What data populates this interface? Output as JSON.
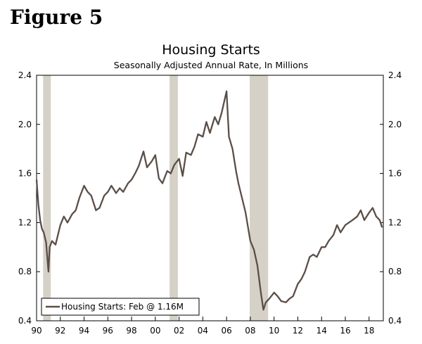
{
  "figure_label": "Figure 5",
  "chart_data": {
    "type": "line",
    "title": "Housing Starts",
    "subtitle": "Seasonally Adjusted Annual Rate, In Millions",
    "xlabel": "",
    "ylabel": "",
    "xlim": [
      1990,
      2019.2
    ],
    "ylim": [
      0.4,
      2.4
    ],
    "y_ticks": [
      0.4,
      0.8,
      1.2,
      1.6,
      2.0,
      2.4
    ],
    "y_tick_labels": [
      "0.4",
      "0.8",
      "1.2",
      "1.6",
      "2.0",
      "2.4"
    ],
    "x_ticks": [
      1990,
      1992,
      1994,
      1996,
      1998,
      2000,
      2002,
      2004,
      2006,
      2008,
      2010,
      2012,
      2014,
      2016,
      2018
    ],
    "x_tick_labels": [
      "90",
      "92",
      "94",
      "96",
      "98",
      "00",
      "02",
      "04",
      "06",
      "08",
      "10",
      "12",
      "14",
      "16",
      "18"
    ],
    "recessions": [
      {
        "start": 1990.55,
        "end": 1991.2
      },
      {
        "start": 2001.2,
        "end": 2001.9
      },
      {
        "start": 2007.95,
        "end": 2009.5
      }
    ],
    "series": [
      {
        "name": "Housing Starts",
        "color": "#5b4e47",
        "x": [
          1990.0,
          1990.15,
          1990.3,
          1990.45,
          1990.6,
          1990.8,
          1991.0,
          1991.1,
          1991.3,
          1991.6,
          1992.0,
          1992.3,
          1992.6,
          1993.0,
          1993.3,
          1993.6,
          1994.0,
          1994.3,
          1994.6,
          1995.0,
          1995.3,
          1995.7,
          1996.0,
          1996.3,
          1996.7,
          1997.0,
          1997.3,
          1997.7,
          1998.0,
          1998.3,
          1998.6,
          1999.0,
          1999.3,
          1999.7,
          2000.0,
          2000.3,
          2000.6,
          2001.0,
          2001.3,
          2001.6,
          2002.0,
          2002.3,
          2002.6,
          2003.0,
          2003.3,
          2003.6,
          2004.0,
          2004.3,
          2004.6,
          2005.0,
          2005.3,
          2005.6,
          2006.0,
          2006.2,
          2006.5,
          2006.8,
          2007.0,
          2007.3,
          2007.6,
          2008.0,
          2008.3,
          2008.6,
          2008.9,
          2009.1,
          2009.3,
          2009.6,
          2010.0,
          2010.3,
          2010.6,
          2011.0,
          2011.3,
          2011.6,
          2012.0,
          2012.3,
          2012.6,
          2013.0,
          2013.3,
          2013.6,
          2014.0,
          2014.3,
          2014.6,
          2015.0,
          2015.3,
          2015.6,
          2016.0,
          2016.3,
          2016.6,
          2017.0,
          2017.3,
          2017.6,
          2018.0,
          2018.3,
          2018.6,
          2018.9,
          2019.1
        ],
        "values": [
          1.55,
          1.35,
          1.22,
          1.15,
          1.12,
          1.04,
          0.8,
          1.0,
          1.05,
          1.02,
          1.18,
          1.25,
          1.2,
          1.27,
          1.3,
          1.4,
          1.5,
          1.45,
          1.42,
          1.3,
          1.32,
          1.42,
          1.45,
          1.5,
          1.44,
          1.48,
          1.45,
          1.52,
          1.55,
          1.6,
          1.66,
          1.78,
          1.65,
          1.7,
          1.75,
          1.56,
          1.52,
          1.62,
          1.6,
          1.67,
          1.72,
          1.58,
          1.77,
          1.75,
          1.82,
          1.92,
          1.9,
          2.02,
          1.93,
          2.06,
          2.0,
          2.1,
          2.27,
          1.9,
          1.8,
          1.62,
          1.52,
          1.4,
          1.28,
          1.05,
          0.98,
          0.85,
          0.62,
          0.49,
          0.55,
          0.58,
          0.63,
          0.6,
          0.56,
          0.55,
          0.58,
          0.6,
          0.7,
          0.74,
          0.8,
          0.92,
          0.94,
          0.92,
          1.0,
          1.0,
          1.05,
          1.1,
          1.18,
          1.12,
          1.18,
          1.2,
          1.22,
          1.25,
          1.3,
          1.22,
          1.28,
          1.32,
          1.25,
          1.22,
          1.16
        ]
      }
    ],
    "legend": {
      "label": "Housing Starts: Feb @ 1.16M",
      "position": "bottom-left"
    }
  }
}
